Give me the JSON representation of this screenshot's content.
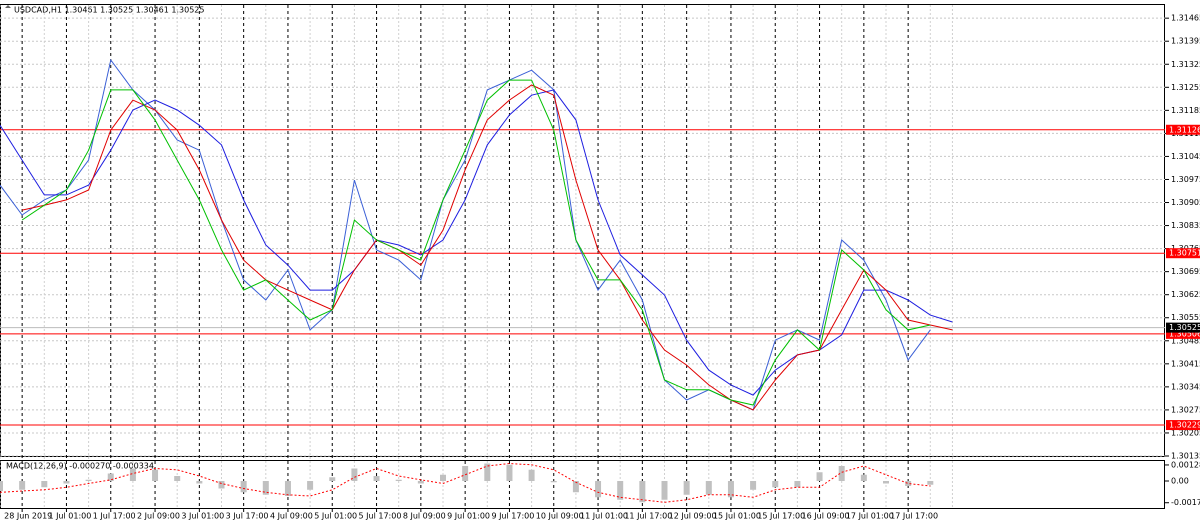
{
  "chart_data": [
    {
      "type": "line",
      "title": "USDCAD,H1  1.30461 1.30525 1.30461 1.30525",
      "categories": [
        null,
        "28 Jun 2019",
        null,
        "1 Jul 01:00",
        null,
        "1 Jul 17:00",
        null,
        "2 Jul 09:00",
        null,
        "3 Jul 01:00",
        null,
        "3 Jul 17:00",
        null,
        "4 Jul 09:00",
        null,
        "5 Jul 01:00",
        null,
        "5 Jul 17:00",
        null,
        "8 Jul 09:00",
        null,
        "9 Jul 01:00",
        null,
        "9 Jul 17:00",
        null,
        "10 Jul 09:00",
        null,
        "11 Jul 01:00",
        null,
        "11 Jul 17:00",
        null,
        "12 Jul 09:00",
        null,
        "15 Jul 01:00",
        null,
        "15 Jul 17:00",
        null,
        "16 Jul 09:00",
        null,
        "17 Jul 01:00",
        null,
        "17 Jul 17:00",
        null,
        null
      ],
      "series": [
        {
          "color": "#3a5fd6",
          "values": [
            1.30958,
            1.30867,
            1.30913,
            1.30943,
            1.31034,
            1.31338,
            1.31247,
            1.31186,
            1.31095,
            1.31064,
            1.30852,
            1.3067,
            1.30609,
            1.307,
            1.30518,
            1.30579,
            1.30973,
            1.30761,
            1.3073,
            1.3067,
            1.30913,
            1.31034,
            1.31247,
            1.31277,
            1.31307,
            1.31247,
            1.30791,
            1.30639,
            1.3073,
            1.30609,
            1.30366,
            1.30305,
            1.30336,
            1.30305,
            1.30275,
            1.30487,
            1.30518,
            1.30487,
            1.30791,
            1.3073,
            1.30609,
            1.30427,
            1.30518,
            null
          ]
        },
        {
          "color": "#1e1ee0",
          "values": [
            1.3114,
            1.31034,
            1.30928,
            1.30928,
            1.30958,
            1.31064,
            1.31186,
            1.31216,
            1.31186,
            1.3114,
            1.3108,
            1.30913,
            1.30776,
            1.30715,
            1.30639,
            1.30639,
            1.307,
            1.30791,
            1.30776,
            1.30746,
            1.30791,
            1.30913,
            1.3108,
            1.31171,
            1.31231,
            1.31247,
            1.31156,
            1.30913,
            1.30746,
            1.30685,
            1.30624,
            1.30487,
            1.30396,
            1.30351,
            1.3032,
            1.30396,
            1.30442,
            1.30457,
            1.30503,
            1.30639,
            1.30639,
            1.30609,
            1.30563,
            1.30542
          ]
        },
        {
          "color": "#e00000",
          "values": [
            null,
            1.30882,
            1.30897,
            1.30913,
            1.30943,
            1.31125,
            1.31216,
            1.31186,
            1.31125,
            1.31004,
            1.30852,
            1.3073,
            1.3067,
            1.30639,
            1.30609,
            1.30579,
            1.307,
            1.30791,
            1.30761,
            1.30715,
            1.30821,
            1.31004,
            1.31156,
            1.31216,
            1.31262,
            1.31231,
            1.30973,
            1.30761,
            1.3067,
            1.30548,
            1.30457,
            1.30411,
            1.30351,
            1.30305,
            1.30275,
            1.30366,
            1.30442,
            1.30457,
            1.30579,
            1.307,
            1.30639,
            1.30548,
            1.30533,
            1.30518
          ]
        },
        {
          "color": "#00c000",
          "values": [
            null,
            1.30852,
            1.30897,
            1.30943,
            1.31064,
            1.31247,
            1.31247,
            1.31156,
            1.31034,
            1.30913,
            1.30761,
            1.30639,
            1.3067,
            1.30609,
            1.30548,
            1.30579,
            1.30852,
            1.30791,
            1.30761,
            1.3073,
            1.30913,
            1.31064,
            1.31216,
            1.31277,
            1.31277,
            1.31125,
            1.30791,
            1.3067,
            1.3067,
            1.30579,
            1.30366,
            1.30336,
            1.30336,
            1.30305,
            1.3029,
            1.30427,
            1.30518,
            1.30457,
            1.30761,
            1.307,
            1.30579,
            1.30518,
            1.30533,
            null
          ]
        }
      ],
      "levels": [
        {
          "value": 1.31126,
          "color": "#ff0000"
        },
        {
          "value": 1.30751,
          "color": "#ff0000"
        },
        {
          "value": 1.30506,
          "color": "#ff0000"
        },
        {
          "value": 1.30229,
          "color": "#ff0000"
        }
      ],
      "last_price": {
        "value": 1.30525,
        "color": "#000000"
      },
      "ylim": [
        1.30135,
        1.31505
      ],
      "yticks": [
        1.31465,
        1.31395,
        1.31325,
        1.31255,
        1.31185,
        1.31115,
        1.31045,
        1.30975,
        1.30905,
        1.30835,
        1.30765,
        1.30695,
        1.30625,
        1.30555,
        1.30485,
        1.30415,
        1.30345,
        1.30275,
        1.30205,
        1.30135
      ],
      "grid": true
    },
    {
      "type": "macd",
      "title": "MACD(12,26,9) -0.000270 -0.000334",
      "histogram": {
        "color": "#c0c0c0",
        "values": [
          -0.0008,
          -0.0007,
          -0.0005,
          -0.0002,
          0.0001,
          0.0006,
          0.001,
          0.0009,
          0.0004,
          -0.0002,
          -0.0006,
          -0.0009,
          -0.0011,
          -0.0012,
          -0.0007,
          0.0003,
          0.001,
          0.0004,
          0.0001,
          -0.0002,
          0.0005,
          0.0012,
          0.0014,
          0.0013,
          0.0009,
          -0.0001,
          -0.0009,
          -0.0013,
          -0.0015,
          -0.0017,
          -0.0015,
          -0.0011,
          -0.0011,
          -0.0013,
          -0.0007,
          -0.0005,
          -0.0005,
          0.0007,
          0.0012,
          0.0005,
          -0.0002,
          -0.0004,
          -0.0003,
          null
        ]
      },
      "signal": {
        "color": "#ff0000",
        "values": [
          -0.0009,
          -0.0008,
          -0.0007,
          -0.0005,
          -0.0002,
          0.0001,
          0.0006,
          0.001,
          0.0009,
          0.0004,
          -0.0002,
          -0.0006,
          -0.0009,
          -0.0011,
          -0.0012,
          -0.0007,
          0.0003,
          0.001,
          0.0004,
          0.0001,
          -0.0002,
          0.0005,
          0.0012,
          0.0014,
          0.0013,
          0.0009,
          -0.0001,
          -0.0009,
          -0.0013,
          -0.0015,
          -0.0017,
          -0.0015,
          -0.0011,
          -0.0011,
          -0.0013,
          -0.0007,
          -0.0005,
          -0.0005,
          0.0007,
          0.0012,
          0.0005,
          -0.0002,
          -0.0004,
          null
        ]
      },
      "ylim": [
        -0.00216,
        0.0016
      ],
      "yticks": [
        0.001284,
        {
          "value": 0,
          "label": "0.00"
        },
        -0.001738
      ]
    }
  ]
}
